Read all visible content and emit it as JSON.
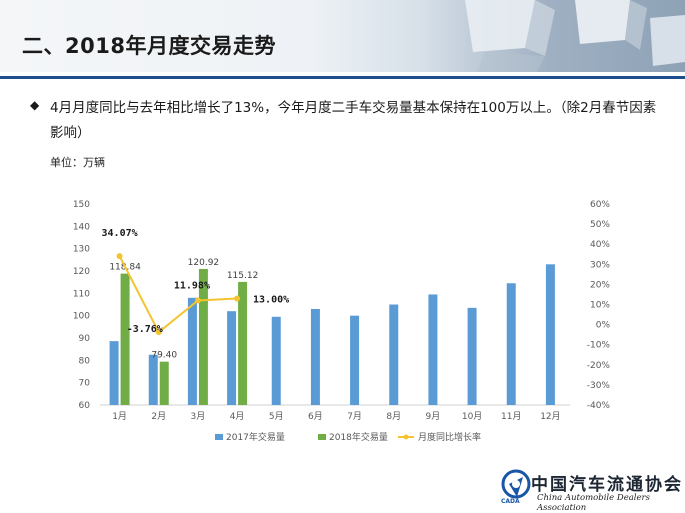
{
  "title": "二、2018年月度交易走势",
  "bullet": {
    "text": "4月月度同比与去年相比增长了13%，今年月度二手车交易量基本保持在100万以上。（除2月春节因素影响）"
  },
  "unit_label": "单位：万辆",
  "logo": {
    "name_cn": "中国汽车流通协会",
    "name_en": "China Automobile Dealers Association",
    "abbr": "CADA"
  },
  "colors": {
    "series_2017": "#5b9bd5",
    "series_2018": "#70ad47",
    "series_rate": "#f4c430",
    "title_line": "#1f4e8c"
  },
  "chart_data": {
    "type": "bar",
    "categories": [
      "1月",
      "2月",
      "3月",
      "4月",
      "5月",
      "6月",
      "7月",
      "8月",
      "9月",
      "10月",
      "11月",
      "12月"
    ],
    "y_left": {
      "min": 60,
      "max": 150,
      "step": 10,
      "ticks": [
        "60",
        "70",
        "80",
        "90",
        "100",
        "110",
        "120",
        "130",
        "140",
        "150"
      ]
    },
    "y_right": {
      "min": -40,
      "max": 60,
      "step": 10,
      "ticks": [
        "-40%",
        "-30%",
        "-20%",
        "-10%",
        "0%",
        "10%",
        "20%",
        "30%",
        "40%",
        "50%",
        "60%"
      ]
    },
    "grid": false,
    "legend_position": "bottom",
    "series": [
      {
        "name": "2017年交易量",
        "kind": "bar",
        "axis": "left",
        "values": [
          88.6,
          82.5,
          108.0,
          102.0,
          99.5,
          103.0,
          100.0,
          105.0,
          109.5,
          103.5,
          114.5,
          123.0
        ]
      },
      {
        "name": "2018年交易量",
        "kind": "bar",
        "axis": "left",
        "values": [
          118.84,
          79.4,
          120.92,
          115.12,
          null,
          null,
          null,
          null,
          null,
          null,
          null,
          null
        ],
        "labels": [
          "118.84",
          "79.40",
          "120.92",
          "115.12"
        ]
      },
      {
        "name": "月度同比增长率",
        "kind": "line",
        "axis": "right",
        "values": [
          34.07,
          -3.76,
          11.98,
          13.0,
          null,
          null,
          null,
          null,
          null,
          null,
          null,
          null
        ],
        "labels": [
          "34.07%",
          "-3.76%",
          "11.98%",
          "13.00%"
        ]
      }
    ]
  }
}
